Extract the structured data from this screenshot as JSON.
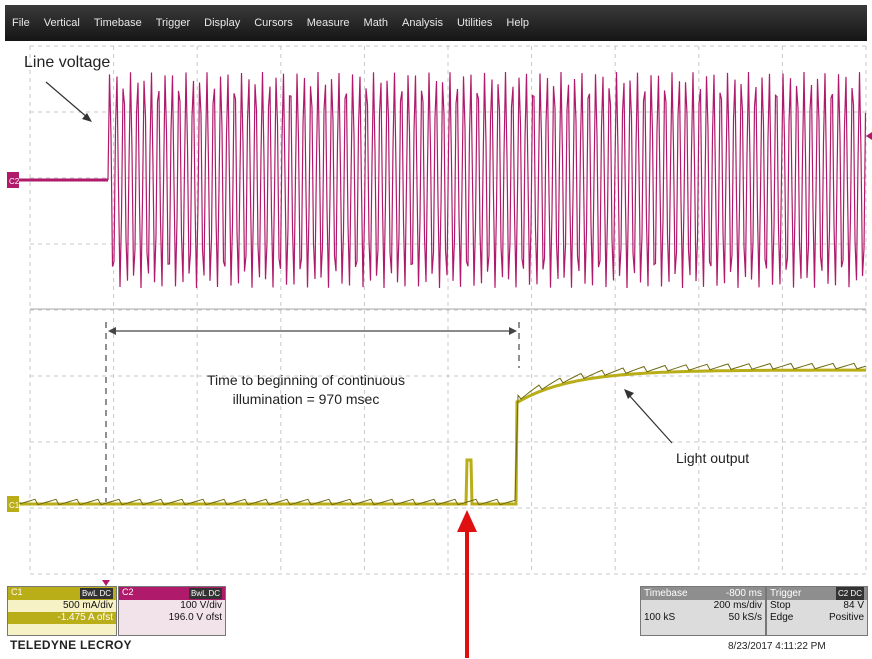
{
  "menu": [
    "File",
    "Vertical",
    "Timebase",
    "Trigger",
    "Display",
    "Cursors",
    "Measure",
    "Math",
    "Analysis",
    "Utilities",
    "Help"
  ],
  "channels": [
    {
      "id": "C2",
      "color": "#b01a6a",
      "marker": "C2"
    },
    {
      "id": "C1",
      "color": "#b9ad18",
      "marker": "C1"
    }
  ],
  "annotations": {
    "line_voltage": "Line voltage",
    "time_line1": "Time to beginning of continuous",
    "time_line2": "illumination = 970 msec",
    "light_output": "Light output"
  },
  "c1_box": {
    "label": "C1",
    "badge": "BwL DC",
    "scale": "500 mA/div",
    "offset": "-1.475 A ofst"
  },
  "c2_box": {
    "label": "C2",
    "badge": "BwL DC",
    "scale": "100 V/div",
    "offset": "196.0 V ofst"
  },
  "timebase": {
    "label": "Timebase",
    "delay": "-800 ms",
    "per_div": "200 ms/div",
    "samples": "100 kS",
    "rate": "50 kS/s"
  },
  "trigger": {
    "label": "Trigger",
    "badge": "C2 DC",
    "mode": "Stop",
    "level": "84 V",
    "type": "Edge",
    "slope": "Positive"
  },
  "brand": "TELEDYNE LECROY",
  "timestamp": "8/23/2017 4:11:22 PM",
  "colors": {
    "c2": "#b01a6a",
    "c1": "#b9ad18",
    "pointer_arrow": "#e01010",
    "grid": "#c9c9c9"
  }
}
